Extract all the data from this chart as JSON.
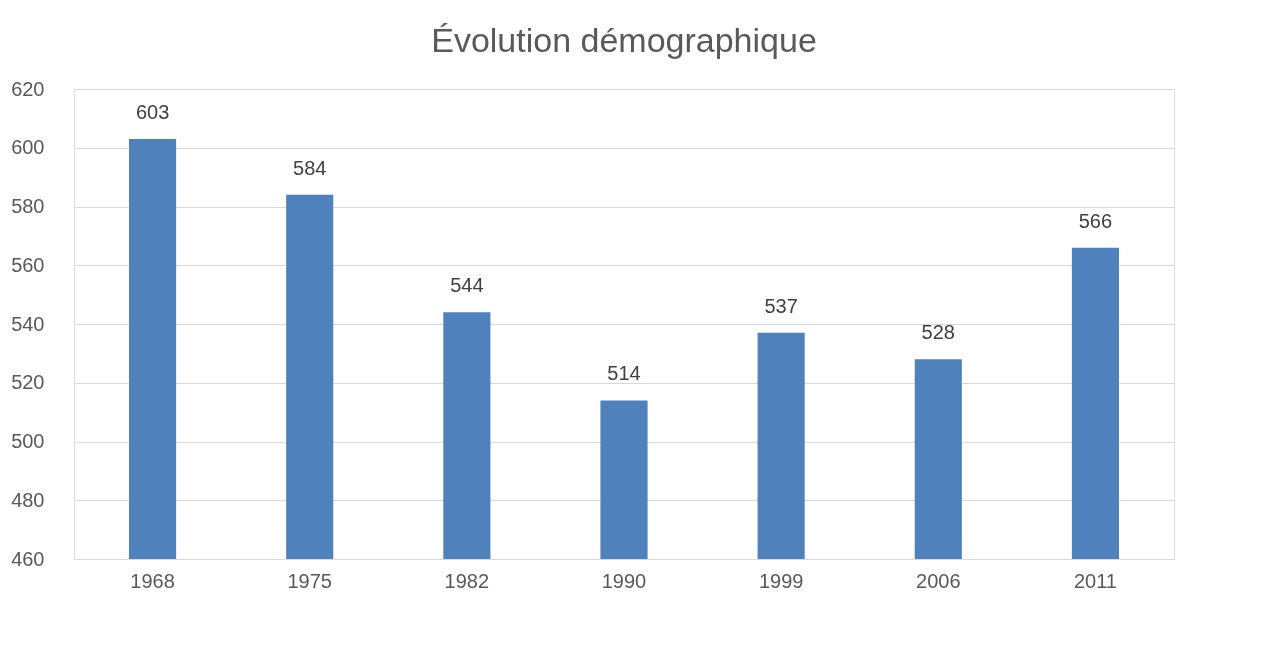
{
  "chart_data": {
    "type": "bar",
    "title": "Évolution démographique",
    "categories": [
      "1968",
      "1975",
      "1982",
      "1990",
      "1999",
      "2006",
      "2011"
    ],
    "values": [
      603,
      584,
      544,
      514,
      537,
      528,
      566
    ],
    "color": "#4f81bd",
    "ylim": [
      460,
      620
    ],
    "yticks": [
      460,
      480,
      500,
      520,
      540,
      560,
      580,
      600,
      620
    ],
    "grid": "y",
    "data_labels": true
  }
}
